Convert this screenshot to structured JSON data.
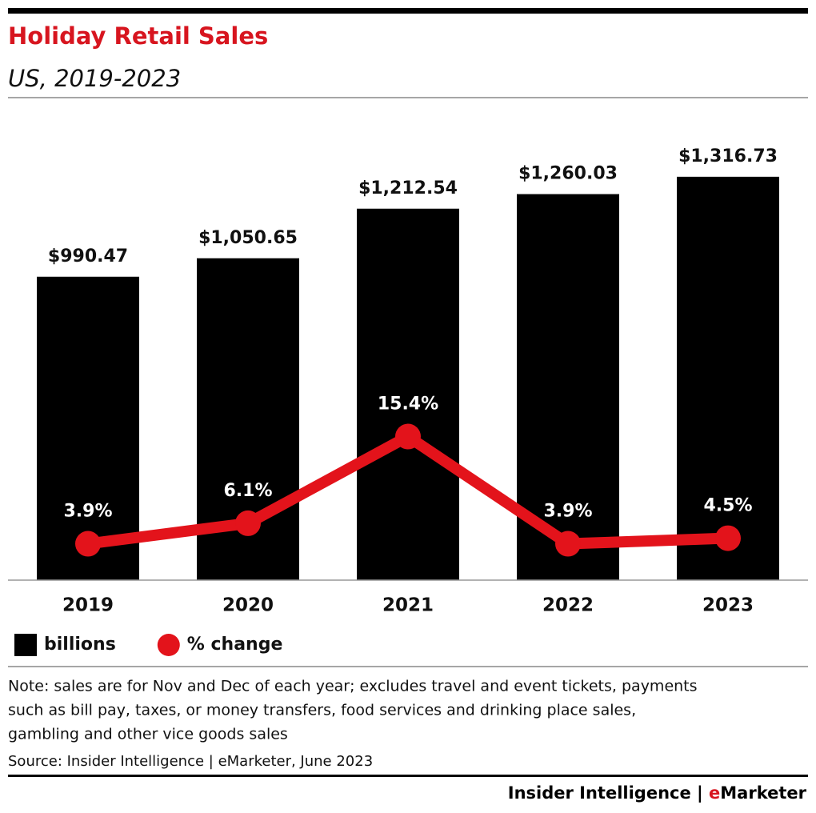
{
  "chart_data": {
    "type": "bar_line",
    "title": "Holiday Retail Sales",
    "subtitle": "US, 2019-2023",
    "categories": [
      "2019",
      "2020",
      "2021",
      "2022",
      "2023"
    ],
    "series": [
      {
        "name": "billions",
        "type": "bar",
        "color": "#000000",
        "values": [
          990.47,
          1050.65,
          1212.54,
          1260.03,
          1316.73
        ],
        "value_labels": [
          "$990.47",
          "$1,050.65",
          "$1,212.54",
          "$1,260.03",
          "$1,316.73"
        ]
      },
      {
        "name": "% change",
        "type": "line",
        "axis": "y2",
        "color": "#e3131b",
        "values": [
          3.9,
          6.1,
          15.4,
          3.9,
          4.5
        ],
        "value_labels": [
          "3.9%",
          "6.1%",
          "15.4%",
          "3.9%",
          "4.5%"
        ]
      }
    ],
    "ylim": [
      0,
      1400
    ],
    "y2lim": [
      0,
      46
    ],
    "grid": false,
    "legend": "bottom-left",
    "note_lines": [
      "Note: sales are for Nov and Dec of each year; excludes travel and event tickets, payments",
      "such as bill pay, taxes, or money transfers, food services and drinking place sales,",
      "gambling and other vice goods sales"
    ],
    "source": "Source: Insider Intelligence | eMarketer, June 2023",
    "footer": {
      "left": "Insider Intelligence",
      "separator": "|",
      "brand_e": "e",
      "brand_rest": "Marketer"
    }
  }
}
